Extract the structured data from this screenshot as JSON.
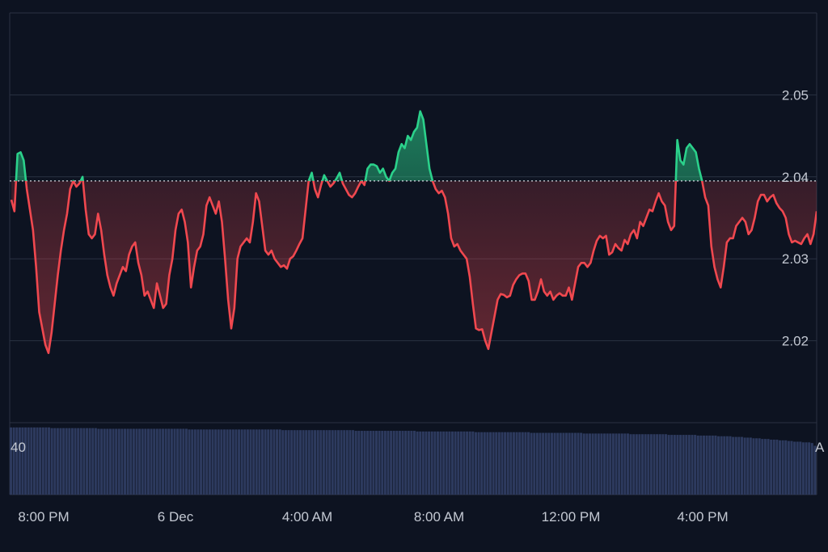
{
  "chart_data": {
    "type": "line",
    "title": "",
    "xlabel": "",
    "ylabel": "",
    "reference_price": 2.0395,
    "ylim": [
      2.01,
      2.06
    ],
    "y_ticks": [
      "2.05",
      "2.04",
      "2.03",
      "2.02"
    ],
    "x_ticks": [
      "8:00 PM",
      "6 Dec",
      "4:00 AM",
      "8:00 AM",
      "12:00 PM",
      "4:00 PM"
    ],
    "volume_left_label": "40",
    "volume_right_label": "A",
    "up_color": "#2bd18b",
    "down_color": "#f0484f",
    "volume_color": "#2d3a5e",
    "grid": true,
    "series": [
      {
        "values": [
          2.0372,
          2.0358,
          2.0428,
          2.043,
          2.042,
          2.0385,
          2.036,
          2.0335,
          2.029,
          2.0235,
          2.0215,
          2.0195,
          2.0185,
          2.021,
          2.0245,
          2.028,
          2.031,
          2.0335,
          2.0355,
          2.0385,
          2.0395,
          2.0388,
          2.0392,
          2.04,
          2.036,
          2.033,
          2.0325,
          2.033,
          2.0355,
          2.0335,
          2.0305,
          2.028,
          2.0265,
          2.0255,
          2.027,
          2.028,
          2.029,
          2.0285,
          2.0305,
          2.0315,
          2.032,
          2.0295,
          2.028,
          2.0255,
          2.026,
          2.025,
          2.024,
          2.027,
          2.0255,
          2.024,
          2.0245,
          2.028,
          2.03,
          2.0335,
          2.0355,
          2.036,
          2.0345,
          2.032,
          2.0265,
          2.029,
          2.031,
          2.0315,
          2.033,
          2.0365,
          2.0375,
          2.0365,
          2.0355,
          2.037,
          2.0345,
          2.03,
          2.025,
          2.0215,
          2.024,
          2.03,
          2.0315,
          2.032,
          2.0325,
          2.032,
          2.0345,
          2.038,
          2.037,
          2.034,
          2.031,
          2.0305,
          2.031,
          2.03,
          2.0295,
          2.029,
          2.0292,
          2.0288,
          2.03,
          2.0303,
          2.031,
          2.0318,
          2.0325,
          2.036,
          2.0395,
          2.0405,
          2.0385,
          2.0375,
          2.039,
          2.0402,
          2.0395,
          2.0388,
          2.0392,
          2.0398,
          2.0405,
          2.0392,
          2.0385,
          2.0378,
          2.0375,
          2.038,
          2.0388,
          2.0395,
          2.039,
          2.041,
          2.0415,
          2.0415,
          2.0413,
          2.0405,
          2.041,
          2.04,
          2.0395,
          2.0405,
          2.041,
          2.043,
          2.044,
          2.0435,
          2.045,
          2.0445,
          2.0455,
          2.046,
          2.048,
          2.047,
          2.044,
          2.041,
          2.0395,
          2.0385,
          2.038,
          2.0383,
          2.0375,
          2.0355,
          2.0325,
          2.0315,
          2.0318,
          2.031,
          2.0305,
          2.03,
          2.0278,
          2.0245,
          2.0215,
          2.0213,
          2.0214,
          2.02,
          2.019,
          2.021,
          2.023,
          2.025,
          2.0257,
          2.0256,
          2.0253,
          2.0255,
          2.0268,
          2.0275,
          2.028,
          2.0282,
          2.0282,
          2.0273,
          2.025,
          2.025,
          2.026,
          2.0275,
          2.026,
          2.0255,
          2.026,
          2.025,
          2.0255,
          2.0258,
          2.0255,
          2.0255,
          2.0265,
          2.025,
          2.027,
          2.029,
          2.0295,
          2.0295,
          2.029,
          2.0295,
          2.031,
          2.0322,
          2.0328,
          2.0325,
          2.0328,
          2.0305,
          2.0308,
          2.0318,
          2.0313,
          2.031,
          2.0323,
          2.0318,
          2.033,
          2.0335,
          2.0325,
          2.0345,
          2.034,
          2.035,
          2.036,
          2.0358,
          2.037,
          2.038,
          2.037,
          2.0365,
          2.0345,
          2.0335,
          2.034,
          2.0445,
          2.042,
          2.0415,
          2.0435,
          2.044,
          2.0435,
          2.043,
          2.041,
          2.0395,
          2.0375,
          2.0365,
          2.0315,
          2.029,
          2.0275,
          2.0265,
          2.029,
          2.032,
          2.0325,
          2.0325,
          2.034,
          2.0345,
          2.035,
          2.0345,
          2.033,
          2.0335,
          2.035,
          2.037,
          2.0378,
          2.0378,
          2.037,
          2.0375,
          2.0378,
          2.0368,
          2.0362,
          2.0358,
          2.035,
          2.033,
          2.032,
          2.0322,
          2.032,
          2.0318,
          2.0325,
          2.033,
          2.0318,
          2.033,
          2.0358
        ]
      }
    ],
    "volume": [
      0.99,
      0.99,
      0.99,
      0.99,
      0.99,
      0.99,
      0.99,
      0.99,
      0.99,
      0.99,
      0.99,
      0.99,
      0.99,
      0.99,
      0.98,
      0.98,
      0.98,
      0.98,
      0.98,
      0.98,
      0.98,
      0.98,
      0.98,
      0.98,
      0.98,
      0.98,
      0.98,
      0.98,
      0.98,
      0.98,
      0.97,
      0.97,
      0.97,
      0.97,
      0.97,
      0.97,
      0.97,
      0.97,
      0.97,
      0.97,
      0.97,
      0.97,
      0.97,
      0.97,
      0.97,
      0.97,
      0.97,
      0.97,
      0.97,
      0.97,
      0.97,
      0.97,
      0.97,
      0.97,
      0.97,
      0.97,
      0.97,
      0.97,
      0.97,
      0.97,
      0.97,
      0.96,
      0.96,
      0.96,
      0.96,
      0.96,
      0.96,
      0.96,
      0.96,
      0.96,
      0.96,
      0.96,
      0.96,
      0.96,
      0.96,
      0.96,
      0.96,
      0.96,
      0.96,
      0.96,
      0.96,
      0.96,
      0.96,
      0.96,
      0.96,
      0.96,
      0.96,
      0.96,
      0.96,
      0.96,
      0.96,
      0.96,
      0.96,
      0.95,
      0.95,
      0.95,
      0.95,
      0.95,
      0.95,
      0.95,
      0.95,
      0.95,
      0.95,
      0.95,
      0.95,
      0.95,
      0.95,
      0.95,
      0.95,
      0.95,
      0.95,
      0.95,
      0.95,
      0.95,
      0.95,
      0.95,
      0.95,
      0.95,
      0.94,
      0.94,
      0.94,
      0.94,
      0.94,
      0.94,
      0.94,
      0.94,
      0.94,
      0.94,
      0.94,
      0.94,
      0.94,
      0.94,
      0.94,
      0.94,
      0.94,
      0.94,
      0.94,
      0.94,
      0.94,
      0.93,
      0.93,
      0.93,
      0.93,
      0.93,
      0.93,
      0.93,
      0.93,
      0.93,
      0.93,
      0.93,
      0.93,
      0.93,
      0.93,
      0.93,
      0.93,
      0.93,
      0.93,
      0.93,
      0.93,
      0.92,
      0.92,
      0.92,
      0.92,
      0.92,
      0.92,
      0.92,
      0.92,
      0.92,
      0.92,
      0.92,
      0.92,
      0.92,
      0.92,
      0.92,
      0.92,
      0.92,
      0.92,
      0.92,
      0.91,
      0.91,
      0.91,
      0.91,
      0.91,
      0.91,
      0.91,
      0.91,
      0.91,
      0.91,
      0.91,
      0.91,
      0.91,
      0.91,
      0.91,
      0.91,
      0.91,
      0.91,
      0.9,
      0.9,
      0.9,
      0.9,
      0.9,
      0.9,
      0.9,
      0.9,
      0.9,
      0.9,
      0.9,
      0.9,
      0.9,
      0.9,
      0.9,
      0.9,
      0.89,
      0.89,
      0.89,
      0.89,
      0.89,
      0.89,
      0.89,
      0.89,
      0.89,
      0.89,
      0.89,
      0.89,
      0.89,
      0.88,
      0.88,
      0.88,
      0.88,
      0.88,
      0.88,
      0.88,
      0.88,
      0.88,
      0.88,
      0.87,
      0.87,
      0.87,
      0.87,
      0.87,
      0.87,
      0.87,
      0.86,
      0.86,
      0.86,
      0.86,
      0.86,
      0.85,
      0.85,
      0.85,
      0.85,
      0.84,
      0.84,
      0.84,
      0.83,
      0.83,
      0.83,
      0.82,
      0.82,
      0.82,
      0.81,
      0.81,
      0.81,
      0.8,
      0.8,
      0.8,
      0.79,
      0.79,
      0.78,
      0.78,
      0.78,
      0.77,
      0.77,
      0.77,
      0.76,
      0.72
    ]
  }
}
